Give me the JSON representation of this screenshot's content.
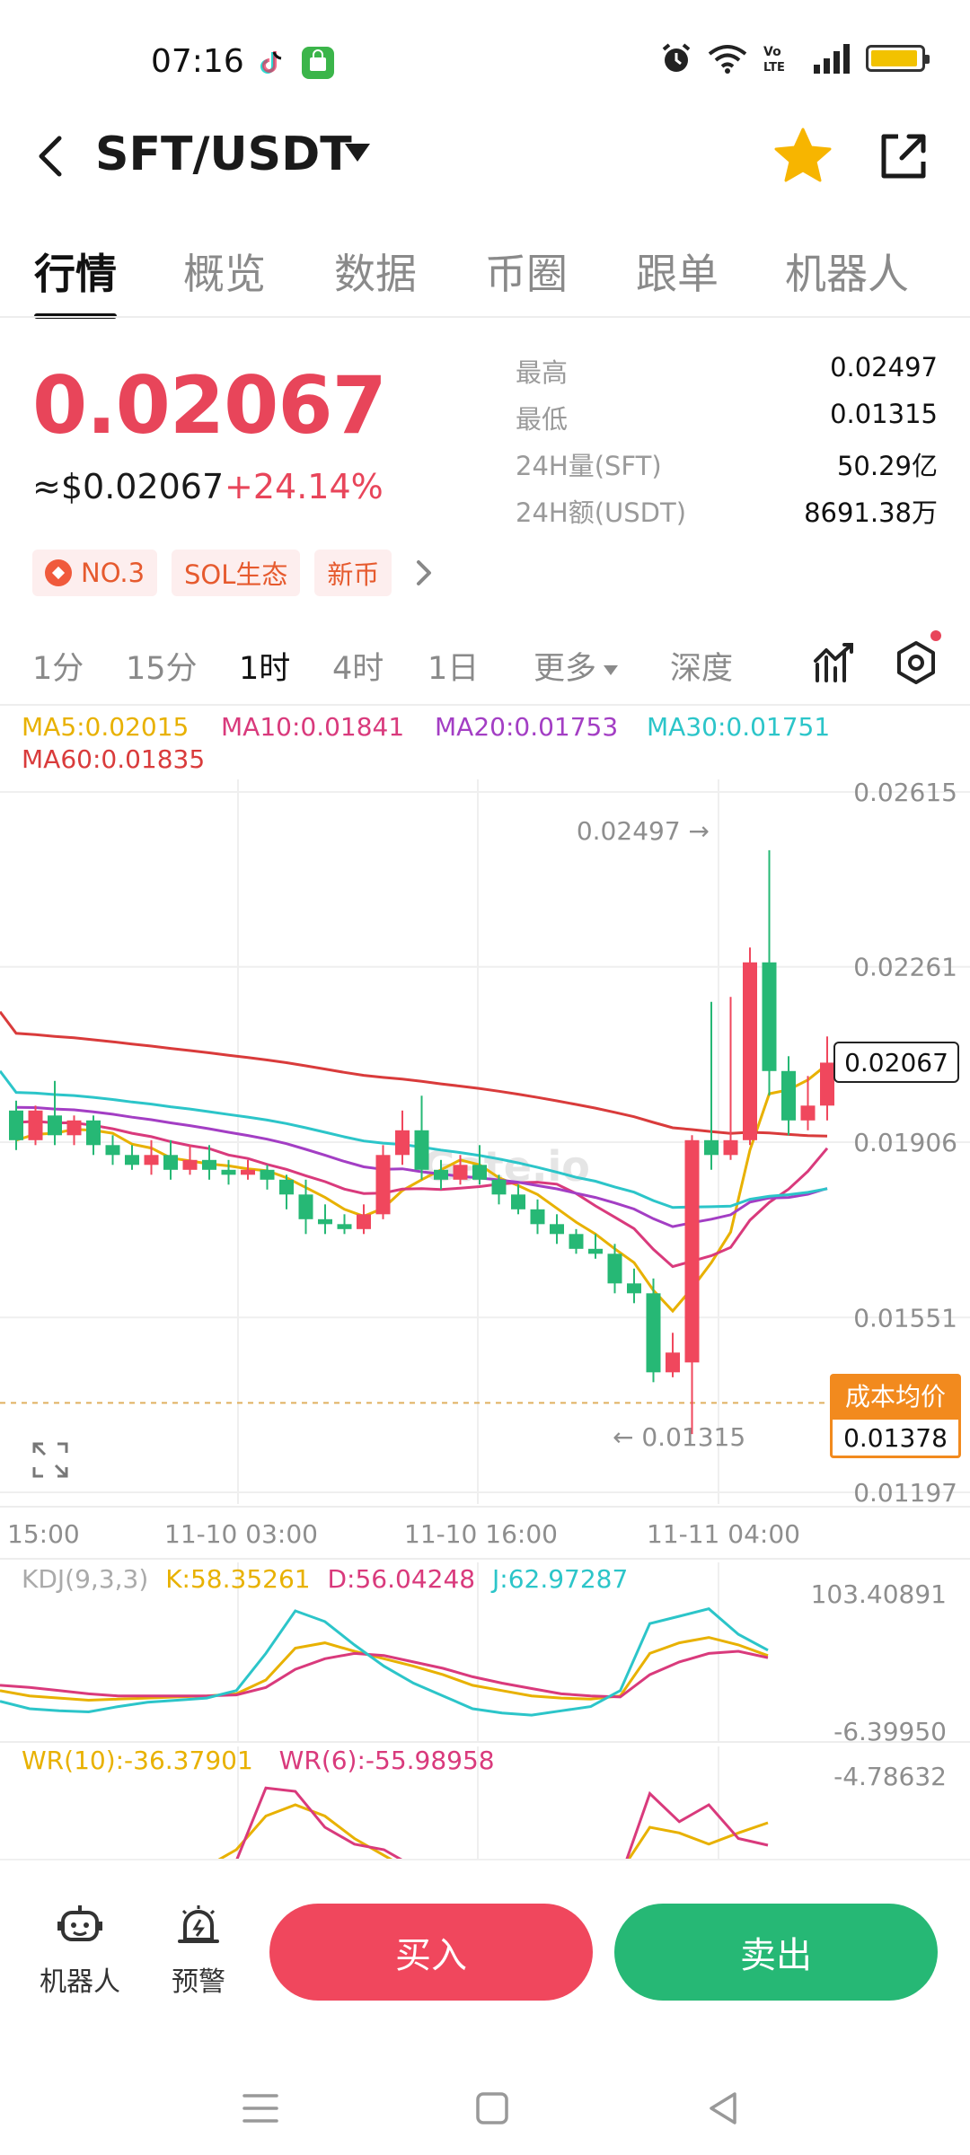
{
  "status_bar": {
    "time": "07:16",
    "battery_level": 0.95
  },
  "header": {
    "pair": "SFT/USDT",
    "favorited": true
  },
  "tabs": [
    {
      "label": "行情",
      "active": true
    },
    {
      "label": "概览",
      "active": false
    },
    {
      "label": "数据",
      "active": false
    },
    {
      "label": "币圈",
      "active": false
    },
    {
      "label": "跟单",
      "active": false
    },
    {
      "label": "机器人",
      "active": false
    }
  ],
  "price": {
    "last": "0.02067",
    "usd": "≈$0.02067",
    "change": "+24.14%"
  },
  "stats": [
    {
      "label": "最高",
      "value": "0.02497"
    },
    {
      "label": "最低",
      "value": "0.01315"
    },
    {
      "label": "24H量(SFT)",
      "value": "50.29亿"
    },
    {
      "label": "24H额(USDT)",
      "value": "8691.38万"
    }
  ],
  "tags": [
    "NO.3",
    "SOL生态",
    "新币"
  ],
  "intervals": [
    {
      "label": "1分",
      "active": false
    },
    {
      "label": "15分",
      "active": false
    },
    {
      "label": "1时",
      "active": true
    },
    {
      "label": "4时",
      "active": false
    },
    {
      "label": "1日",
      "active": false
    },
    {
      "label": "更多",
      "active": false
    },
    {
      "label": "深度",
      "active": false
    }
  ],
  "ma_legend": [
    {
      "text": "MA5:0.02015",
      "color": "#e8b100"
    },
    {
      "text": "MA10:0.01841",
      "color": "#d93a7c"
    },
    {
      "text": "MA20:0.01753",
      "color": "#a33ec4"
    },
    {
      "text": "MA30:0.01751",
      "color": "#2cc5c9"
    },
    {
      "text": "MA60:0.01835",
      "color": "#d93b3b"
    }
  ],
  "chart_data": [
    {
      "type": "candlestick",
      "y_ticks": [
        "0.02615",
        "0.02261",
        "0.01906",
        "0.01551",
        "0.01197"
      ],
      "ylim": [
        0.01197,
        0.02615
      ],
      "x_ticks": [
        "15:00",
        "11-10 03:00",
        "11-10 16:00",
        "11-11 04:00"
      ],
      "high_annotation": "0.02497 →",
      "low_annotation": "← 0.01315",
      "last_price": "0.02067",
      "cost_label": "成本均价",
      "cost_value": "0.01378",
      "candles": [
        [
          0.0197,
          0.0191,
          0.0199,
          0.0189
        ],
        [
          0.0191,
          0.0197,
          0.0198,
          0.019
        ],
        [
          0.0196,
          0.0192,
          0.0203,
          0.019
        ],
        [
          0.0192,
          0.0195,
          0.0196,
          0.019
        ],
        [
          0.0195,
          0.019,
          0.0196,
          0.0188
        ],
        [
          0.019,
          0.0188,
          0.0192,
          0.0186
        ],
        [
          0.0188,
          0.0186,
          0.019,
          0.0185
        ],
        [
          0.0186,
          0.0188,
          0.0191,
          0.0184
        ],
        [
          0.0188,
          0.0185,
          0.0191,
          0.0183
        ],
        [
          0.0185,
          0.0187,
          0.019,
          0.0184
        ],
        [
          0.0187,
          0.0185,
          0.019,
          0.0183
        ],
        [
          0.0185,
          0.0184,
          0.0187,
          0.0182
        ],
        [
          0.0184,
          0.0185,
          0.0187,
          0.0183
        ],
        [
          0.0185,
          0.0183,
          0.0186,
          0.0181
        ],
        [
          0.0183,
          0.018,
          0.0184,
          0.0177
        ],
        [
          0.018,
          0.0175,
          0.0183,
          0.0172
        ],
        [
          0.0175,
          0.0174,
          0.0178,
          0.0172
        ],
        [
          0.0174,
          0.0173,
          0.0176,
          0.0172
        ],
        [
          0.0173,
          0.0176,
          0.0178,
          0.0172
        ],
        [
          0.0176,
          0.0188,
          0.019,
          0.0175
        ],
        [
          0.0188,
          0.0193,
          0.0197,
          0.0186
        ],
        [
          0.0193,
          0.0185,
          0.02,
          0.0183
        ],
        [
          0.0185,
          0.0183,
          0.0187,
          0.0181
        ],
        [
          0.0183,
          0.0186,
          0.0188,
          0.0182
        ],
        [
          0.0186,
          0.0183,
          0.019,
          0.0182
        ],
        [
          0.0183,
          0.018,
          0.0184,
          0.0178
        ],
        [
          0.018,
          0.0177,
          0.0182,
          0.0176
        ],
        [
          0.0177,
          0.0174,
          0.0179,
          0.0172
        ],
        [
          0.0174,
          0.0172,
          0.0176,
          0.017
        ],
        [
          0.0172,
          0.0169,
          0.0173,
          0.0168
        ],
        [
          0.0169,
          0.0168,
          0.0172,
          0.0167
        ],
        [
          0.0168,
          0.0162,
          0.017,
          0.016
        ],
        [
          0.0162,
          0.016,
          0.0165,
          0.0158
        ],
        [
          0.016,
          0.0144,
          0.0163,
          0.0142
        ],
        [
          0.0144,
          0.0148,
          0.0152,
          0.0143
        ],
        [
          0.0146,
          0.0191,
          0.0192,
          0.01315
        ],
        [
          0.0191,
          0.0188,
          0.0219,
          0.0185
        ],
        [
          0.0188,
          0.0191,
          0.022,
          0.0187
        ],
        [
          0.0191,
          0.0227,
          0.023,
          0.019
        ],
        [
          0.0227,
          0.0205,
          0.02497,
          0.02
        ],
        [
          0.0205,
          0.0195,
          0.0208,
          0.0192
        ],
        [
          0.0195,
          0.0198,
          0.0204,
          0.0193
        ],
        [
          0.0198,
          0.02067,
          0.0212,
          0.0195
        ]
      ]
    },
    {
      "type": "line",
      "legend": [
        {
          "text": "KDJ(9,3,3)",
          "color": "#aaaaaa"
        },
        {
          "text": "K:58.35261",
          "color": "#e8b100"
        },
        {
          "text": "D:56.04248",
          "color": "#d93a7c"
        },
        {
          "text": "J:62.97287",
          "color": "#2cc5c9"
        }
      ],
      "y_ticks": [
        "103.40891",
        "-6.39950"
      ],
      "ylim": [
        -6.3995,
        103.40891
      ],
      "series": [
        {
          "name": "K",
          "color": "#e8b100",
          "values": [
            25,
            20,
            18,
            16,
            17,
            18,
            19,
            20,
            22,
            35,
            65,
            70,
            62,
            55,
            48,
            40,
            30,
            25,
            20,
            18,
            17,
            20,
            60,
            70,
            75,
            68,
            58
          ]
        },
        {
          "name": "D",
          "color": "#d93a7c",
          "values": [
            30,
            28,
            25,
            22,
            20,
            20,
            20,
            20,
            21,
            28,
            45,
            55,
            60,
            58,
            52,
            46,
            38,
            32,
            27,
            22,
            20,
            19,
            40,
            52,
            60,
            62,
            56
          ]
        },
        {
          "name": "J",
          "color": "#2cc5c9",
          "values": [
            15,
            8,
            6,
            5,
            10,
            14,
            16,
            18,
            25,
            60,
            100,
            90,
            68,
            48,
            32,
            20,
            8,
            4,
            2,
            6,
            10,
            25,
            88,
            95,
            102,
            78,
            63
          ]
        }
      ]
    },
    {
      "type": "line",
      "legend": [
        {
          "text": "WR(10):-36.37901",
          "color": "#e8b100"
        },
        {
          "text": "WR(6):-55.98958",
          "color": "#d93a7c"
        }
      ],
      "y_ticks": [
        "-4.78632"
      ],
      "series": [
        {
          "name": "WR(10)",
          "color": "#e8b100",
          "values": [
            -70,
            -75,
            -80,
            -78,
            -82,
            -85,
            -80,
            -75,
            -60,
            -30,
            -20,
            -30,
            -50,
            -65,
            -80,
            -85,
            -90,
            -92,
            -95,
            -90,
            -85,
            -80,
            -40,
            -45,
            -55,
            -45,
            -36
          ]
        },
        {
          "name": "WR(6)",
          "color": "#d93a7c",
          "values": [
            -80,
            -85,
            -90,
            -88,
            -92,
            -90,
            -85,
            -80,
            -70,
            -5,
            -8,
            -40,
            -55,
            -60,
            -75,
            -85,
            -95,
            -98,
            -99,
            -95,
            -90,
            -85,
            -10,
            -35,
            -20,
            -50,
            -56
          ]
        }
      ]
    }
  ],
  "bottom_bar": {
    "robot_label": "机器人",
    "alert_label": "预警",
    "buy_label": "买入",
    "sell_label": "卖出"
  },
  "colors": {
    "up": "#26b875",
    "down": "#f0475d",
    "accent": "#f28a1e"
  }
}
